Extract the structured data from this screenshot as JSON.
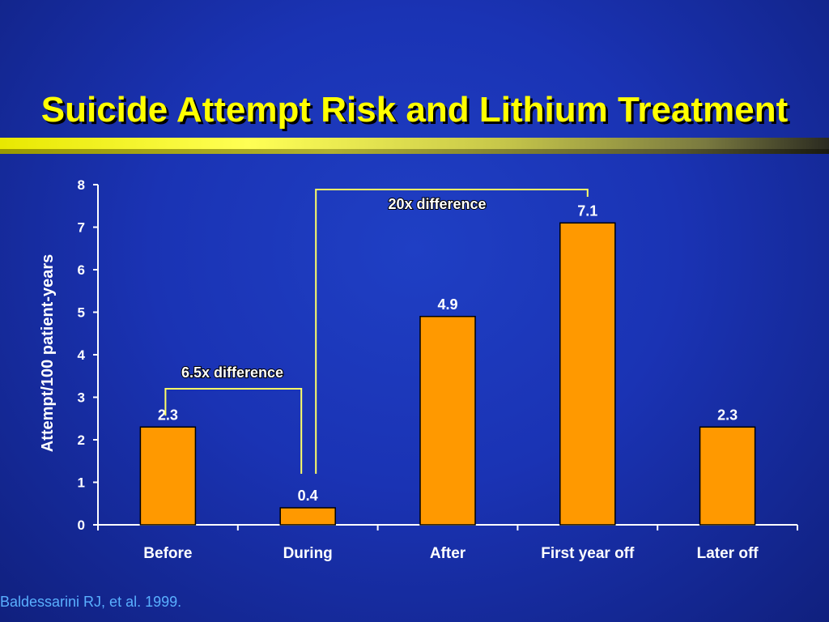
{
  "slide": {
    "title": "Suicide Attempt Risk and Lithium Treatment",
    "citation": "Baldessarini RJ, et al. 1999."
  },
  "colors": {
    "background": "#1a33b4",
    "title": "#ffff00",
    "bar_fill": "#ff9900",
    "bracket": "#ffff66",
    "citation": "#5ab0ff"
  },
  "chart_data": {
    "type": "bar",
    "categories": [
      "Before",
      "During",
      "After",
      "First year off",
      "Later off"
    ],
    "values": [
      2.3,
      0.4,
      4.9,
      7.1,
      2.3
    ],
    "data_labels": [
      "2.3",
      "0.4",
      "4.9",
      "7.1",
      "2.3"
    ],
    "ylabel": "Attempt/100 patient-years",
    "xlabel": "",
    "ylim": [
      0,
      8
    ],
    "yticks": [
      0,
      1,
      2,
      3,
      4,
      5,
      6,
      7,
      8
    ],
    "grid": false,
    "annotations": [
      {
        "text": "6.5x difference",
        "from_category": "Before",
        "to_category": "During"
      },
      {
        "text": "20x difference",
        "from_category": "During",
        "to_category": "First year off"
      }
    ]
  }
}
